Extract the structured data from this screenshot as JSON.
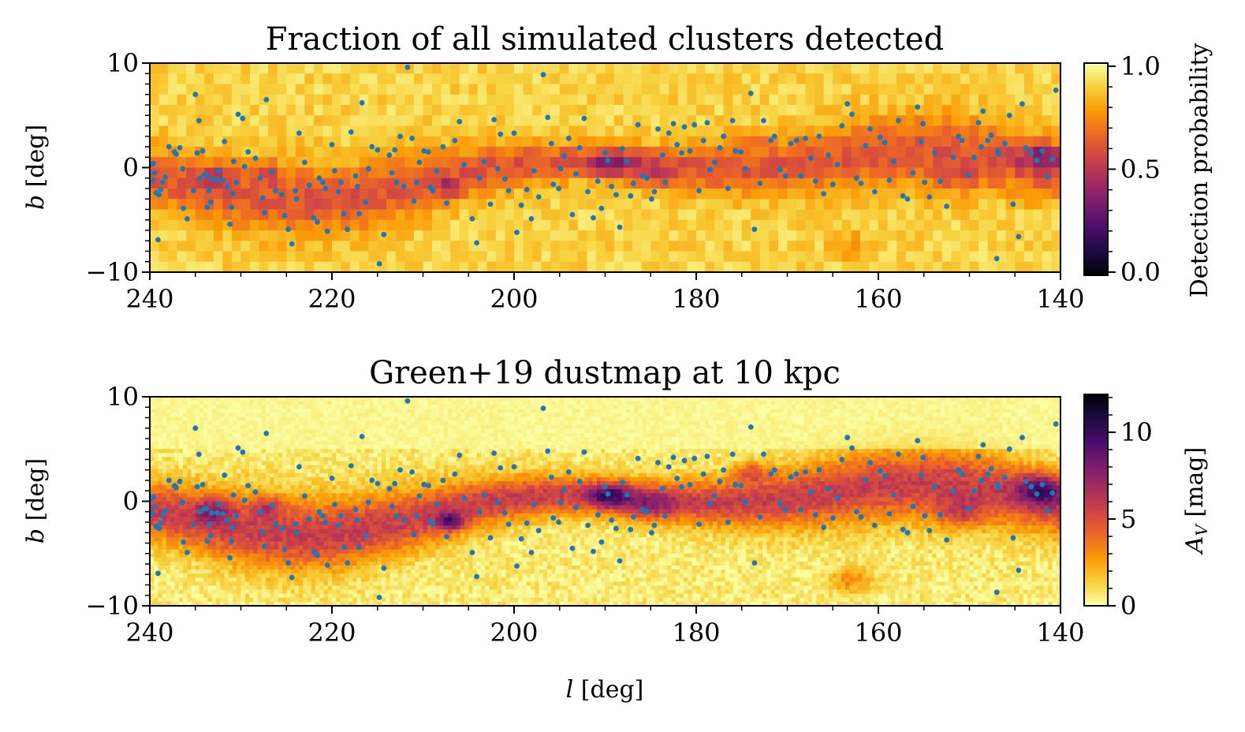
{
  "colors": {
    "scatter": "#1f77b4",
    "inferno_stops": [
      "#000004",
      "#1b0c41",
      "#4a0c6b",
      "#781c6d",
      "#a52c60",
      "#cf4446",
      "#ed6925",
      "#fb9b06",
      "#f7d13d",
      "#fcffa4"
    ]
  },
  "chart_data": [
    {
      "type": "heatmap",
      "title": "Fraction of all simulated clusters detected",
      "xlabel": "",
      "ylabel_var": "b",
      "ylabel_unit": "[deg]",
      "xlim": [
        240,
        140
      ],
      "ylim": [
        -10,
        10
      ],
      "x_ticks": [
        240,
        220,
        200,
        180,
        160,
        140
      ],
      "y_ticks": [
        10,
        0,
        -10
      ],
      "y_tick_labels": [
        "10",
        "0",
        "−10"
      ],
      "colormap": "inferno",
      "grid": {
        "nx": 100,
        "ny": 20
      },
      "value_model": "detection probability ~0.85 far from the plane, dropping to ~0.45 near b = 0 (darkest cells ~0.1 near l = 207, b = -2)",
      "colorbar": {
        "label": "Detection probability",
        "range": [
          0.0,
          1.0
        ],
        "ticks": [
          1.0,
          0.5,
          0.0
        ],
        "tick_labels": [
          "1.0",
          "0.5",
          "0.0"
        ]
      },
      "scatter_overlay": "clusters"
    },
    {
      "type": "heatmap",
      "title": "Green+19 dustmap at 10 kpc",
      "xlabel_var": "l",
      "xlabel_unit": "[deg]",
      "ylabel_var": "b",
      "ylabel_unit": "[deg]",
      "xlim": [
        240,
        140
      ],
      "ylim": [
        -10,
        10
      ],
      "x_ticks": [
        240,
        220,
        200,
        180,
        160,
        140
      ],
      "y_ticks": [
        10,
        0,
        -10
      ],
      "y_tick_labels": [
        "10",
        "0",
        "−10"
      ],
      "colormap": "inferno_r",
      "value_model": "A_V extinction ~1 mag at high |b|, rising to ~4-8 mag along the plane with peaks ~10 mag",
      "colorbar": {
        "label_var": "A",
        "label_sub": "V",
        "label_unit": "[mag]",
        "range": [
          0,
          12
        ],
        "ticks": [
          10,
          5,
          0
        ],
        "tick_labels": [
          "10",
          "5",
          "0"
        ]
      },
      "scatter_overlay": "clusters"
    }
  ],
  "clusters": [
    [
      239.9,
      0.3
    ],
    [
      239.6,
      0.4
    ],
    [
      239.5,
      -0.5
    ],
    [
      239.7,
      -1.2
    ],
    [
      239.3,
      -2.4
    ],
    [
      239.0,
      -2.6
    ],
    [
      238.8,
      -2.1
    ],
    [
      238.6,
      -1.4
    ],
    [
      238.3,
      -0.9
    ],
    [
      239.1,
      -6.9
    ],
    [
      237.9,
      2.0
    ],
    [
      237.3,
      1.5
    ],
    [
      237.1,
      1.3
    ],
    [
      236.7,
      1.9
    ],
    [
      236.4,
      -0.1
    ],
    [
      236.3,
      -3.9
    ],
    [
      235.9,
      -4.9
    ],
    [
      235.2,
      -2.2
    ],
    [
      235.0,
      7.0
    ],
    [
      234.6,
      4.5
    ],
    [
      234.8,
      1.4
    ],
    [
      234.5,
      -1.0
    ],
    [
      234.2,
      1.6
    ],
    [
      234.0,
      -0.7
    ],
    [
      233.8,
      -0.7
    ],
    [
      233.5,
      -2.2
    ],
    [
      233.3,
      -3.3
    ],
    [
      233.7,
      -3.8
    ],
    [
      233.2,
      -1.1
    ],
    [
      232.6,
      -1.1
    ],
    [
      232.4,
      -0.3
    ],
    [
      232.0,
      -1.2
    ],
    [
      231.8,
      2.5
    ],
    [
      231.5,
      -1.8
    ],
    [
      231.2,
      -5.4
    ],
    [
      231.0,
      -3.8
    ],
    [
      230.9,
      -2.5
    ],
    [
      230.5,
      -1.4
    ],
    [
      230.3,
      5.1
    ],
    [
      229.8,
      4.7
    ],
    [
      230.8,
      0.6
    ],
    [
      229.6,
      0.1
    ],
    [
      229.2,
      1.5
    ],
    [
      228.4,
      0.9
    ],
    [
      227.9,
      -1.0
    ],
    [
      227.6,
      -2.9
    ],
    [
      227.4,
      -4.3
    ],
    [
      227.2,
      6.5
    ],
    [
      226.6,
      -0.4
    ],
    [
      226.2,
      -2.2
    ],
    [
      225.5,
      -2.6
    ],
    [
      225.2,
      -4.6
    ],
    [
      224.8,
      -5.9
    ],
    [
      224.4,
      -7.3
    ],
    [
      224.0,
      -2.2
    ],
    [
      223.9,
      -3.0
    ],
    [
      223.6,
      3.3
    ],
    [
      223.0,
      0.5
    ],
    [
      222.5,
      -1.7
    ],
    [
      222.0,
      -4.8
    ],
    [
      221.6,
      -5.2
    ],
    [
      221.4,
      -1.0
    ],
    [
      221.0,
      -1.4
    ],
    [
      220.7,
      -2.0
    ],
    [
      220.5,
      -6.1
    ],
    [
      220.0,
      2.2
    ],
    [
      219.7,
      -0.3
    ],
    [
      219.3,
      -2.3
    ],
    [
      219.0,
      -1.4
    ],
    [
      218.7,
      -4.4
    ],
    [
      218.3,
      -5.9
    ],
    [
      217.9,
      3.4
    ],
    [
      217.4,
      -0.8
    ],
    [
      217.2,
      -1.8
    ],
    [
      217.0,
      -4.4
    ],
    [
      216.7,
      6.2
    ],
    [
      216.3,
      -3.3
    ],
    [
      216.0,
      -0.1
    ],
    [
      215.6,
      2.0
    ],
    [
      215.0,
      1.7
    ],
    [
      214.8,
      -9.2
    ],
    [
      214.3,
      -6.4
    ],
    [
      213.7,
      1.2
    ],
    [
      213.4,
      -0.5
    ],
    [
      213.1,
      1.7
    ],
    [
      212.9,
      -1.4
    ],
    [
      212.5,
      3.0
    ],
    [
      212.1,
      -1.8
    ],
    [
      211.7,
      9.6
    ],
    [
      211.2,
      2.8
    ],
    [
      211.0,
      -3.2
    ],
    [
      210.7,
      -1.4
    ],
    [
      210.4,
      0.5
    ],
    [
      209.9,
      1.6
    ],
    [
      209.4,
      1.5
    ],
    [
      209.2,
      -1.9
    ],
    [
      208.9,
      -2.2
    ],
    [
      208.5,
      -0.3
    ],
    [
      207.8,
      2.0
    ],
    [
      207.4,
      -3.4
    ],
    [
      206.5,
      2.6
    ],
    [
      206.0,
      4.4
    ],
    [
      205.5,
      0.3
    ],
    [
      204.6,
      -4.9
    ],
    [
      204.1,
      -7.2
    ],
    [
      203.8,
      -1.0
    ],
    [
      203.3,
      0.6
    ],
    [
      202.6,
      -3.5
    ],
    [
      202.2,
      4.6
    ],
    [
      201.8,
      -0.1
    ],
    [
      201.5,
      3.2
    ],
    [
      201.0,
      -1.1
    ],
    [
      200.6,
      -2.2
    ],
    [
      200.0,
      3.3
    ],
    [
      199.7,
      -6.2
    ],
    [
      199.2,
      -3.6
    ],
    [
      198.6,
      -2.1
    ],
    [
      198.1,
      -4.9
    ],
    [
      197.8,
      -0.3
    ],
    [
      197.3,
      -2.8
    ],
    [
      196.8,
      8.9
    ],
    [
      196.3,
      4.8
    ],
    [
      195.9,
      2.3
    ],
    [
      195.7,
      -1.6
    ],
    [
      195.1,
      -2.0
    ],
    [
      194.9,
      -0.1
    ],
    [
      194.5,
      1.1
    ],
    [
      194.0,
      2.8
    ],
    [
      193.6,
      -4.5
    ],
    [
      193.2,
      -0.6
    ],
    [
      192.8,
      1.9
    ],
    [
      192.3,
      4.7
    ],
    [
      191.9,
      -2.3
    ],
    [
      191.3,
      -4.8
    ],
    [
      190.8,
      -1.3
    ],
    [
      190.4,
      -3.9
    ],
    [
      190.0,
      1.4
    ],
    [
      189.7,
      0.7
    ],
    [
      189.3,
      -1.8
    ],
    [
      188.8,
      -2.6
    ],
    [
      188.4,
      -5.7
    ],
    [
      188.1,
      1.8
    ],
    [
      187.6,
      0.6
    ],
    [
      187.2,
      -2.7
    ],
    [
      186.9,
      -1.5
    ],
    [
      186.4,
      4.1
    ],
    [
      185.9,
      -0.8
    ],
    [
      185.4,
      -1.0
    ],
    [
      184.9,
      -3.0
    ],
    [
      184.6,
      -2.3
    ],
    [
      184.2,
      3.7
    ],
    [
      183.7,
      1.2
    ],
    [
      183.4,
      -1.4
    ],
    [
      183.0,
      3.3
    ],
    [
      182.5,
      4.2
    ],
    [
      182.1,
      2.2
    ],
    [
      181.6,
      1.4
    ],
    [
      181.3,
      3.9
    ],
    [
      180.7,
      1.6
    ],
    [
      180.2,
      4.1
    ],
    [
      179.7,
      -2.2
    ],
    [
      179.2,
      2.6
    ],
    [
      178.8,
      4.3
    ],
    [
      178.5,
      -0.2
    ],
    [
      178.0,
      0.5
    ],
    [
      177.4,
      1.9
    ],
    [
      177.0,
      3.0
    ],
    [
      176.5,
      -2.0
    ],
    [
      176.0,
      4.5
    ],
    [
      175.7,
      1.6
    ],
    [
      175.1,
      1.5
    ],
    [
      174.6,
      -0.1
    ],
    [
      174.0,
      7.1
    ],
    [
      173.6,
      -5.9
    ],
    [
      173.0,
      -1.5
    ],
    [
      172.6,
      4.5
    ],
    [
      171.8,
      2.6
    ],
    [
      171.4,
      3.0
    ],
    [
      170.8,
      -0.2
    ],
    [
      170.2,
      -0.8
    ],
    [
      169.6,
      2.3
    ],
    [
      169.0,
      2.6
    ],
    [
      168.5,
      -0.8
    ],
    [
      168.0,
      2.8
    ],
    [
      167.4,
      0.9
    ],
    [
      166.9,
      -1.3
    ],
    [
      166.5,
      3.0
    ],
    [
      166.0,
      -2.5
    ],
    [
      165.5,
      1.2
    ],
    [
      165.0,
      -1.6
    ],
    [
      164.5,
      0.3
    ],
    [
      164.0,
      4.0
    ],
    [
      163.4,
      6.1
    ],
    [
      162.9,
      5.1
    ],
    [
      162.4,
      -1.0
    ],
    [
      161.9,
      -1.5
    ],
    [
      161.4,
      2.1
    ],
    [
      160.9,
      3.7
    ],
    [
      160.4,
      -2.3
    ],
    [
      159.8,
      2.9
    ],
    [
      159.3,
      2.4
    ],
    [
      158.8,
      -1.2
    ],
    [
      158.3,
      0.6
    ],
    [
      157.8,
      4.5
    ],
    [
      157.3,
      -2.7
    ],
    [
      156.8,
      -3.0
    ],
    [
      156.2,
      -0.5
    ],
    [
      155.7,
      5.8
    ],
    [
      155.3,
      2.5
    ],
    [
      154.9,
      -1.4
    ],
    [
      154.4,
      -2.8
    ],
    [
      153.8,
      1.4
    ],
    [
      153.2,
      -1.3
    ],
    [
      152.5,
      -3.7
    ],
    [
      151.8,
      1.0
    ],
    [
      151.2,
      3.0
    ],
    [
      150.8,
      2.6
    ],
    [
      150.1,
      -0.7
    ],
    [
      149.5,
      1.0
    ],
    [
      149.0,
      4.3
    ],
    [
      148.5,
      5.4
    ],
    [
      148.0,
      2.6
    ],
    [
      147.6,
      3.1
    ],
    [
      147.0,
      -8.7
    ],
    [
      146.8,
      1.3
    ],
    [
      146.1,
      2.3
    ],
    [
      145.6,
      5.0
    ],
    [
      145.2,
      -3.5
    ],
    [
      144.6,
      -6.6
    ],
    [
      144.2,
      6.1
    ],
    [
      143.8,
      1.9
    ],
    [
      143.2,
      1.4
    ],
    [
      142.6,
      0.7
    ],
    [
      142.0,
      1.6
    ],
    [
      141.4,
      -0.9
    ],
    [
      140.9,
      0.8
    ],
    [
      140.5,
      7.4
    ],
    [
      146.9,
      1.6
    ],
    [
      148.7,
      2.0
    ],
    [
      155.1,
      4.2
    ]
  ]
}
